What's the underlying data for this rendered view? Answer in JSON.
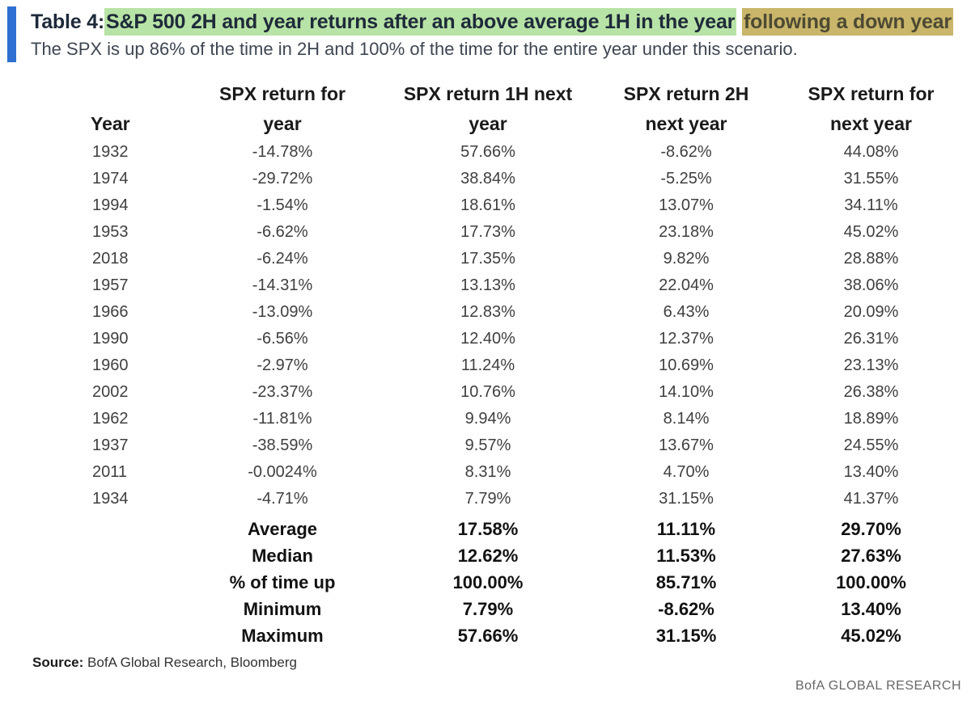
{
  "title": {
    "prefix": "Table 4: ",
    "highlight_green": "S&P 500 2H and year returns after an above average 1H in the year",
    "highlight_olive": "following a down year"
  },
  "subtitle": "The SPX is up 86% of the time in 2H and 100% of the time for the entire year under this scenario.",
  "colors": {
    "accent_bar": "#2f6fd1",
    "highlight_green": "#b8e3a6",
    "highlight_olive": "#c9b66a"
  },
  "table": {
    "headers": {
      "year": "Year",
      "spx_year": [
        "SPX return for",
        "year"
      ],
      "spx_1h_next": [
        "SPX return 1H next",
        "year"
      ],
      "spx_2h_next": [
        "SPX return 2H",
        "next year"
      ],
      "spx_next_year": [
        "SPX return for",
        "next year"
      ]
    },
    "rows": [
      [
        "1932",
        "-14.78%",
        "57.66%",
        "-8.62%",
        "44.08%"
      ],
      [
        "1974",
        "-29.72%",
        "38.84%",
        "-5.25%",
        "31.55%"
      ],
      [
        "1994",
        "-1.54%",
        "18.61%",
        "13.07%",
        "34.11%"
      ],
      [
        "1953",
        "-6.62%",
        "17.73%",
        "23.18%",
        "45.02%"
      ],
      [
        "2018",
        "-6.24%",
        "17.35%",
        "9.82%",
        "28.88%"
      ],
      [
        "1957",
        "-14.31%",
        "13.13%",
        "22.04%",
        "38.06%"
      ],
      [
        "1966",
        "-13.09%",
        "12.83%",
        "6.43%",
        "20.09%"
      ],
      [
        "1990",
        "-6.56%",
        "12.40%",
        "12.37%",
        "26.31%"
      ],
      [
        "1960",
        "-2.97%",
        "11.24%",
        "10.69%",
        "23.13%"
      ],
      [
        "2002",
        "-23.37%",
        "10.76%",
        "14.10%",
        "26.38%"
      ],
      [
        "1962",
        "-11.81%",
        "9.94%",
        "8.14%",
        "18.89%"
      ],
      [
        "1937",
        "-38.59%",
        "9.57%",
        "13.67%",
        "24.55%"
      ],
      [
        "2011",
        "-0.0024%",
        "8.31%",
        "4.70%",
        "13.40%"
      ],
      [
        "1934",
        "-4.71%",
        "7.79%",
        "31.15%",
        "41.37%"
      ]
    ],
    "summary": [
      [
        "Average",
        "17.58%",
        "11.11%",
        "29.70%"
      ],
      [
        "Median",
        "12.62%",
        "11.53%",
        "27.63%"
      ],
      [
        "% of time up",
        "100.00%",
        "85.71%",
        "100.00%"
      ],
      [
        "Minimum",
        "7.79%",
        "-8.62%",
        "13.40%"
      ],
      [
        "Maximum",
        "57.66%",
        "31.15%",
        "45.02%"
      ]
    ]
  },
  "source": {
    "label": "Source:",
    "text": " BofA Global Research, Bloomberg"
  },
  "brand": "BofA GLOBAL RESEARCH"
}
